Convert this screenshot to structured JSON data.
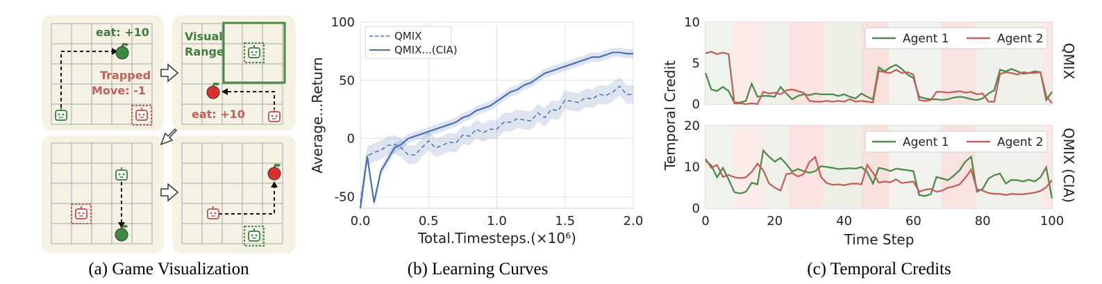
{
  "captions": {
    "a": "(a) Game Visualization",
    "b": "(b) Learning Curves",
    "c": "(c) Temporal Credits"
  },
  "game": {
    "eat_top": "eat: +10",
    "eat_bottom": "eat: +10",
    "visual_range_1": "Visual",
    "visual_range_2": "Range",
    "trapped_1": "Trapped",
    "trapped_2": "Move: -1"
  },
  "colors": {
    "green": "#4a8a4a",
    "red": "#c0605a",
    "blue": "#4a6fb4",
    "panel_bg": "#f5f1e3"
  },
  "chart_data": [
    {
      "type": "line",
      "xlabel": "Total.Timesteps.(×10⁶)",
      "ylabel": "Average...Return",
      "xlim": [
        0,
        2.0
      ],
      "ylim": [
        -60,
        100
      ],
      "xticks": [
        "0.0",
        "0.5",
        "1.0",
        "1.5",
        "2.0"
      ],
      "yticks": [
        "-50",
        "0",
        "50",
        "100"
      ],
      "grid": true,
      "legend": "top-left",
      "x": [
        0.0,
        0.05,
        0.1,
        0.15,
        0.2,
        0.25,
        0.3,
        0.35,
        0.4,
        0.45,
        0.5,
        0.55,
        0.6,
        0.65,
        0.7,
        0.75,
        0.8,
        0.85,
        0.9,
        0.95,
        1.0,
        1.05,
        1.1,
        1.15,
        1.2,
        1.25,
        1.3,
        1.35,
        1.4,
        1.45,
        1.5,
        1.55,
        1.6,
        1.65,
        1.7,
        1.75,
        1.8,
        1.85,
        1.9,
        1.95,
        2.0
      ],
      "series": [
        {
          "name": "QMIX",
          "style": "dashed",
          "values": [
            -55,
            -15,
            -12,
            -10,
            -6,
            -5,
            -8,
            -14,
            -14,
            -8,
            -2,
            -8,
            -6,
            -3,
            -4,
            3,
            2,
            8,
            5,
            8,
            8,
            14,
            14,
            17,
            16,
            15,
            22,
            18,
            25,
            24,
            33,
            32,
            31,
            35,
            34,
            38,
            37,
            40,
            45,
            38,
            38
          ]
        },
        {
          "name": "QMIX...(CIA)",
          "style": "solid",
          "values": [
            -60,
            -15,
            -55,
            -28,
            -18,
            -8,
            -5,
            0,
            2,
            4,
            6,
            8,
            10,
            12,
            14,
            18,
            20,
            24,
            26,
            28,
            32,
            36,
            40,
            42,
            46,
            48,
            52,
            56,
            58,
            60,
            62,
            64,
            66,
            68,
            70,
            70,
            72,
            74,
            74,
            73,
            73
          ]
        }
      ]
    },
    {
      "type": "line",
      "title": "QMIX",
      "ylabel": "Temporal Credit",
      "xlim": [
        0,
        100
      ],
      "ylim": [
        0,
        10
      ],
      "yticks": [
        "0",
        "5",
        "10"
      ],
      "legend": "top-right",
      "x_step": 2,
      "series": [
        {
          "name": "Agent 1",
          "values": [
            3.8,
            1.8,
            1.6,
            2.1,
            1.6,
            0.2,
            0.2,
            0.4,
            2.5,
            0.9,
            1.0,
            1.0,
            0.9,
            2.1,
            1.3,
            0.6,
            1.0,
            1.2,
            1.1,
            1.3,
            1.2,
            1.2,
            1.2,
            1.0,
            1.2,
            0.9,
            0.7,
            1.3,
            0.9,
            0.6,
            4.5,
            4.0,
            4.5,
            4.8,
            4.3,
            3.6,
            3.2,
            0.9,
            0.7,
            0.6,
            0.6,
            0.5,
            0.6,
            0.8,
            0.9,
            0.8,
            0.6,
            0.5,
            0.7,
            1.3,
            1.7,
            4.2,
            4.0,
            4.3,
            4.0,
            3.7,
            3.8,
            4.0,
            3.9,
            0.5,
            1.5
          ]
        },
        {
          "name": "Agent 2",
          "values": [
            6.2,
            6.4,
            6.1,
            6.3,
            6.1,
            0.1,
            0.1,
            0.0,
            0.1,
            0.0,
            1.5,
            1.3,
            1.4,
            1.2,
            1.7,
            1.8,
            1.6,
            1.4,
            0.4,
            0.3,
            0.3,
            0.4,
            0.3,
            0.4,
            0.3,
            0.6,
            0.3,
            0.4,
            0.3,
            0.2,
            4.1,
            3.9,
            3.8,
            4.2,
            3.8,
            3.9,
            3.6,
            0.5,
            0.4,
            0.5,
            1.5,
            1.5,
            1.4,
            1.5,
            1.6,
            1.4,
            1.5,
            1.2,
            1.3,
            0.3,
            0.3,
            3.7,
            3.9,
            3.8,
            3.6,
            3.9,
            3.8,
            3.8,
            3.9,
            1.0,
            0.1
          ]
        }
      ]
    },
    {
      "type": "line",
      "title": "QMIX (CIA)",
      "xlabel": "Time Step",
      "xlim": [
        0,
        100
      ],
      "ylim": [
        0,
        20
      ],
      "xticks": [
        "0",
        "20",
        "40",
        "60",
        "80",
        "100"
      ],
      "yticks": [
        "0",
        "10",
        "20"
      ],
      "legend": "top-right",
      "x_step": 2,
      "series": [
        {
          "name": "Agent 1",
          "values": [
            11.5,
            10.4,
            7.5,
            9.8,
            7.0,
            3.9,
            3.6,
            4.0,
            6.2,
            5.8,
            14.0,
            12.5,
            11.3,
            12.2,
            10.7,
            8.9,
            9.5,
            9.0,
            8.6,
            9.0,
            10.2,
            10.0,
            9.8,
            9.5,
            9.6,
            9.7,
            9.6,
            10.0,
            8.8,
            6.0,
            9.8,
            9.5,
            9.0,
            9.6,
            9.4,
            9.2,
            9.0,
            3.2,
            3.0,
            3.4,
            7.6,
            7.2,
            6.8,
            7.9,
            9.2,
            11.3,
            12.5,
            4.0,
            4.7,
            7.2,
            8.0,
            8.4,
            6.0,
            6.9,
            6.8,
            6.5,
            6.9,
            6.5,
            7.5,
            9.9,
            2.4
          ]
        },
        {
          "name": "Agent 2",
          "values": [
            12.0,
            9.8,
            10.5,
            7.6,
            8.1,
            7.5,
            7.3,
            7.5,
            8.8,
            10.8,
            9.2,
            6.0,
            5.0,
            4.3,
            8.3,
            8.5,
            7.7,
            8.3,
            11.2,
            12.4,
            7.6,
            6.1,
            5.7,
            5.8,
            5.6,
            5.9,
            6.0,
            5.8,
            10.5,
            8.6,
            6.2,
            6.5,
            6.3,
            7.0,
            6.1,
            6.3,
            6.5,
            4.0,
            4.5,
            4.7,
            4.0,
            4.3,
            5.0,
            5.3,
            5.8,
            7.4,
            9.4,
            4.6,
            4.3,
            3.7,
            3.5,
            3.5,
            3.2,
            3.5,
            3.4,
            3.4,
            3.6,
            3.8,
            4.2,
            5.1,
            6.8
          ]
        }
      ]
    }
  ]
}
